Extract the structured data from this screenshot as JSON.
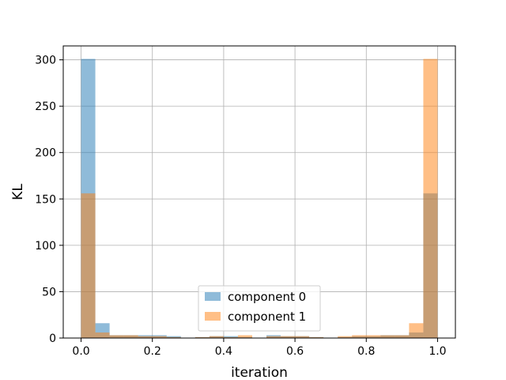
{
  "chart_data": {
    "type": "bar",
    "xlabel": "iteration",
    "ylabel": "KL",
    "xlim": [
      -0.05,
      1.05
    ],
    "ylim": [
      0,
      315
    ],
    "x_ticks": [
      0.0,
      0.2,
      0.4,
      0.6,
      0.8,
      1.0
    ],
    "x_tick_labels": [
      "0.0",
      "0.2",
      "0.4",
      "0.6",
      "0.8",
      "1.0"
    ],
    "y_ticks": [
      0,
      50,
      100,
      150,
      200,
      250,
      300
    ],
    "y_tick_labels": [
      "0",
      "50",
      "100",
      "150",
      "200",
      "250",
      "300"
    ],
    "grid": true,
    "legend_position": "lower-center",
    "bin_edges": [
      0.0,
      0.04,
      0.08,
      0.12,
      0.16,
      0.2,
      0.24,
      0.28,
      0.32,
      0.36,
      0.4,
      0.44,
      0.48,
      0.52,
      0.56,
      0.6,
      0.64,
      0.68,
      0.72,
      0.76,
      0.8,
      0.84,
      0.88,
      0.92,
      0.96,
      1.0
    ],
    "series": [
      {
        "name": "component 0",
        "color": "#1f77b4",
        "values": [
          301,
          16,
          3,
          3,
          3,
          3,
          2,
          0,
          1,
          2,
          2,
          1,
          0,
          3,
          2,
          2,
          1,
          0,
          1,
          2,
          2,
          3,
          3,
          6,
          156
        ]
      },
      {
        "name": "component 1",
        "color": "#ff7f0e",
        "values": [
          156,
          6,
          3,
          3,
          2,
          2,
          1,
          0,
          1,
          2,
          1,
          3,
          0,
          2,
          2,
          2,
          1,
          0,
          2,
          3,
          3,
          3,
          3,
          16,
          301
        ]
      }
    ]
  }
}
